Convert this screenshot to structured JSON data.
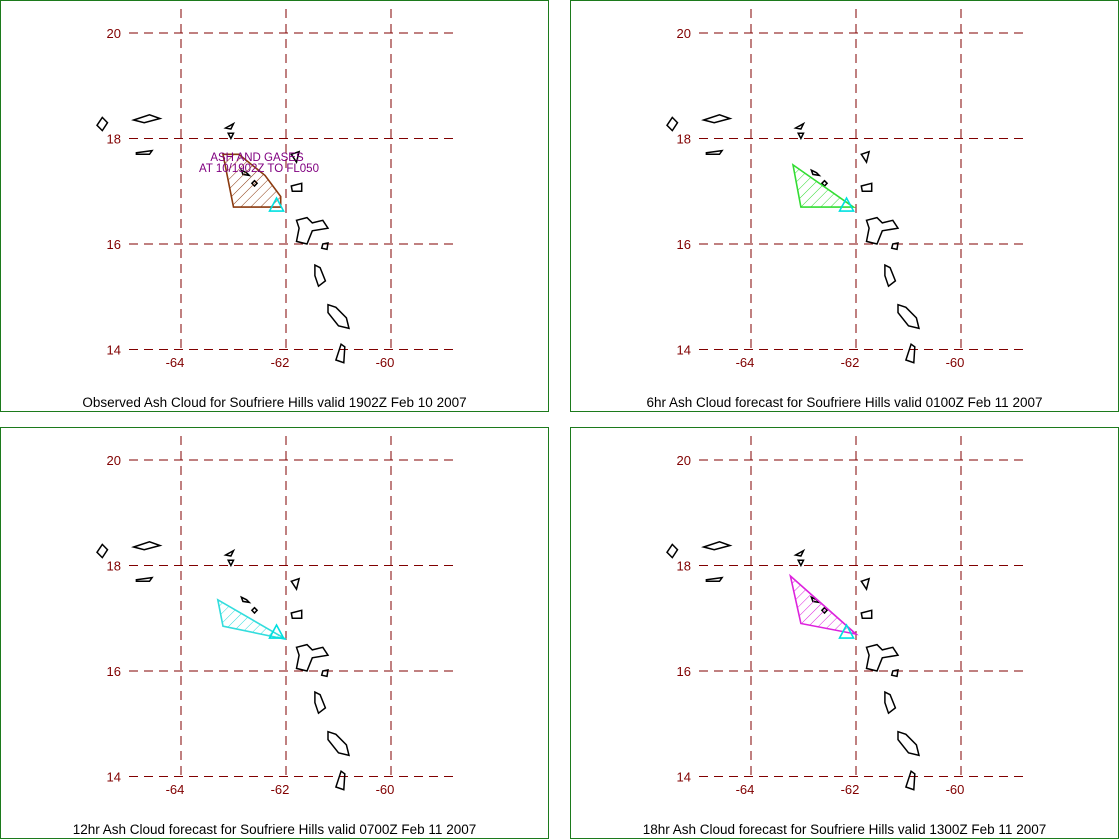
{
  "map": {
    "lat_ticks": [
      "20",
      "18",
      "16",
      "14"
    ],
    "lon_ticks": [
      "-64",
      "-62",
      "-60"
    ],
    "grid_color": "#800000",
    "coast_color": "#000000",
    "volcano_color": "#00e0e0"
  },
  "panels": [
    {
      "caption": "Observed Ash Cloud for Soufriere  Hills valid 1902Z Feb 10 2007",
      "cloud_color": "#8b3a0f",
      "annotation_line1": "ASH  AND GASES",
      "annotation_line2": "AT 10/1902Z TO FL050",
      "cloud_polygon": [
        [
          -63.2,
          17.7
        ],
        [
          -63.0,
          16.7
        ],
        [
          -62.1,
          16.7
        ],
        [
          -62.1,
          16.9
        ],
        [
          -62.4,
          17.3
        ],
        [
          -62.9,
          17.7
        ]
      ]
    },
    {
      "caption": "6hr Ash Cloud forecast for Soufriere  Hills valid 0100Z Feb 11 2007",
      "cloud_color": "#33dd33",
      "cloud_polygon": [
        [
          -63.2,
          17.5
        ],
        [
          -63.05,
          16.7
        ],
        [
          -62.05,
          16.7
        ]
      ]
    },
    {
      "caption": "12hr Ash Cloud forecast for Soufriere  Hills valid 0700Z Feb 11 2007",
      "cloud_color": "#33dddd",
      "cloud_polygon": [
        [
          -63.3,
          17.35
        ],
        [
          -63.2,
          16.85
        ],
        [
          -62.0,
          16.6
        ]
      ]
    },
    {
      "caption": "18hr Ash Cloud forecast for Soufriere  Hills valid 1300Z Feb 11 2007",
      "cloud_color": "#dd22dd",
      "cloud_polygon": [
        [
          -63.25,
          17.8
        ],
        [
          -63.05,
          16.9
        ],
        [
          -62.0,
          16.7
        ]
      ]
    }
  ]
}
